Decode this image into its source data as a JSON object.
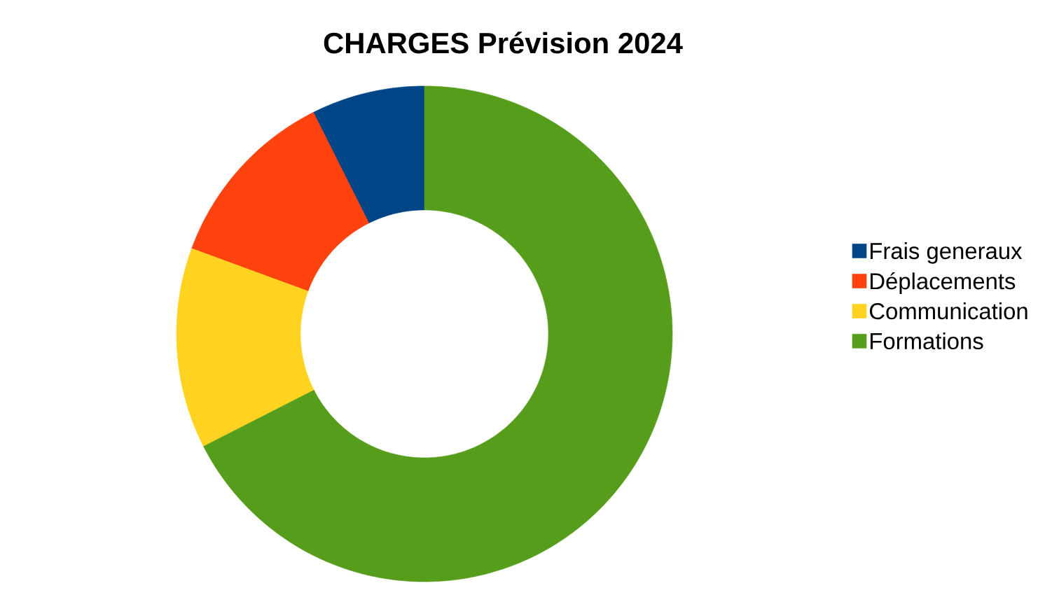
{
  "chart_data": {
    "type": "donut",
    "title": "CHARGES  Prévision 2024",
    "categories": [
      "Frais generaux",
      "Déplacements",
      "Communication",
      "Formations"
    ],
    "values": [
      7.4,
      12.0,
      13.1,
      67.5
    ],
    "colors": [
      "#004586",
      "#ff420e",
      "#ffd320",
      "#579d1c"
    ],
    "legend": "right"
  }
}
